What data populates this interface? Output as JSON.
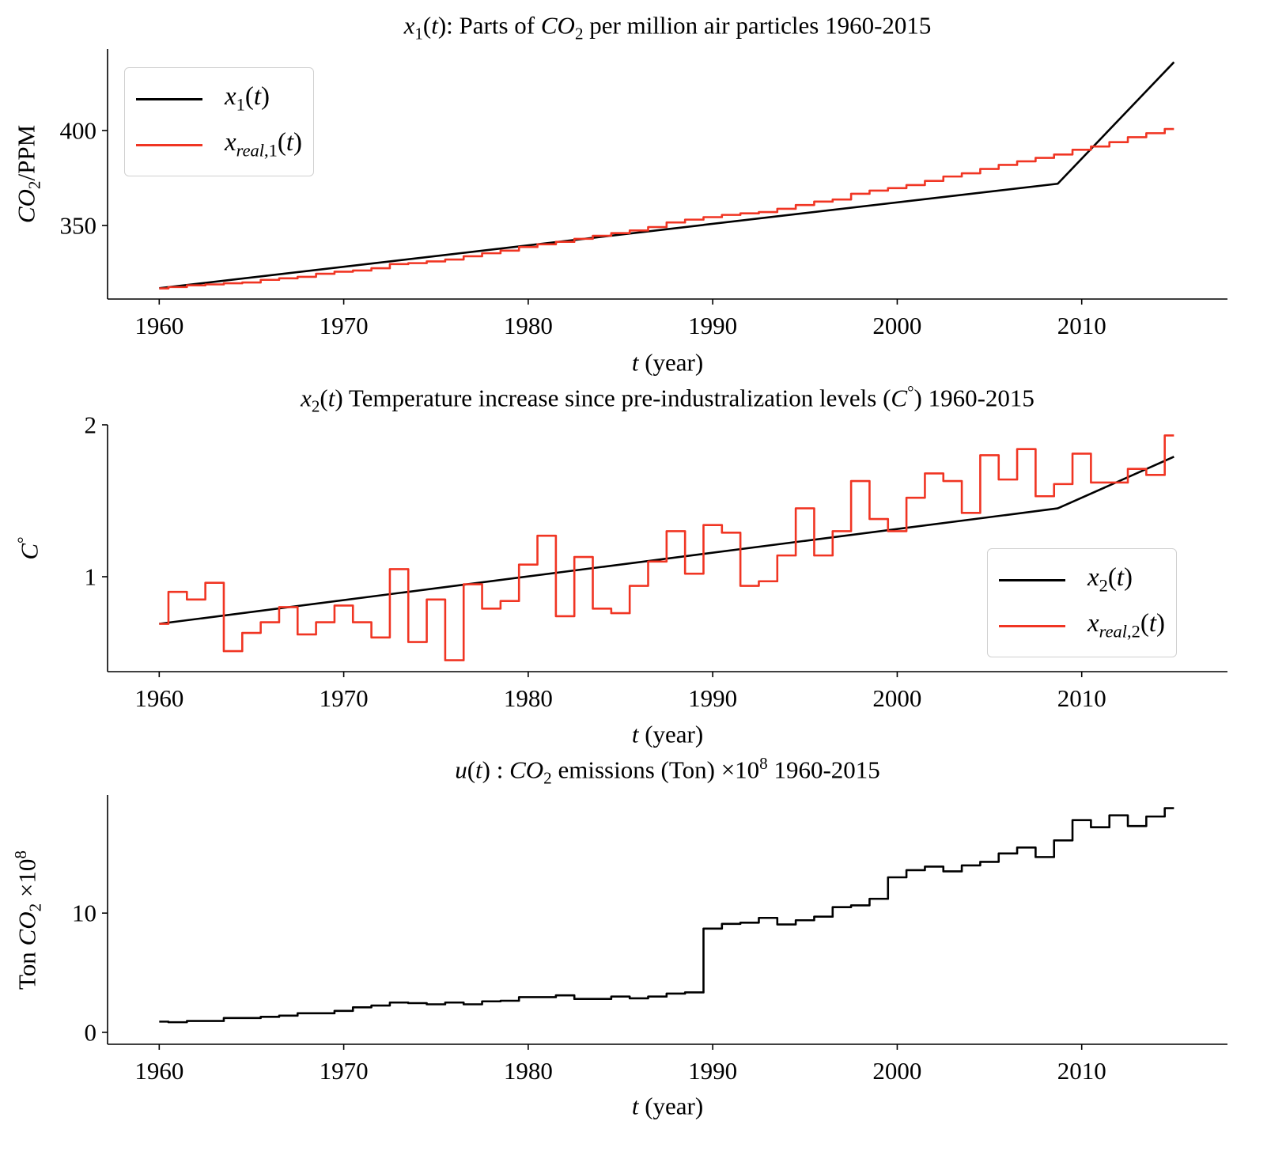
{
  "chart_data": [
    {
      "type": "line",
      "title": "$x_1(t)$: Parts of $CO_2$ per million air particles 1960-2015",
      "xlabel": "$t$ (year)",
      "ylabel": "$CO_2$/PPM",
      "xlim": [
        1957.2,
        2017.9
      ],
      "ylim": [
        311.3,
        442.9
      ],
      "x_ticks": [
        1960,
        1970,
        1980,
        1990,
        2000,
        2010
      ],
      "x_tick_labels": [
        "1960",
        "1970",
        "1980",
        "1990",
        "2000",
        "2010"
      ],
      "y_ticks": [
        350,
        400
      ],
      "y_tick_labels": [
        "350",
        "400"
      ],
      "grid": false,
      "legend": "upper-left",
      "series": [
        {
          "name": "$x_1(t)$",
          "color": "#000000",
          "style": "line",
          "x": [
            1960,
            2008.7,
            2015
          ],
          "values": [
            317.0,
            372.0,
            436.0
          ]
        },
        {
          "name": "$x_{real,1}(t)$",
          "color": "#f03523",
          "style": "step",
          "x": [
            1960,
            1961,
            1962,
            1963,
            1964,
            1965,
            1966,
            1967,
            1968,
            1969,
            1970,
            1971,
            1972,
            1973,
            1974,
            1975,
            1976,
            1977,
            1978,
            1979,
            1980,
            1981,
            1982,
            1983,
            1984,
            1985,
            1986,
            1987,
            1988,
            1989,
            1990,
            1991,
            1992,
            1993,
            1994,
            1995,
            1996,
            1997,
            1998,
            1999,
            2000,
            2001,
            2002,
            2003,
            2004,
            2005,
            2006,
            2007,
            2008,
            2009,
            2010,
            2011,
            2012,
            2013,
            2014,
            2015
          ],
          "values": [
            316.9,
            317.6,
            318.5,
            319.0,
            319.6,
            320.0,
            321.4,
            322.2,
            323.0,
            324.6,
            325.7,
            326.3,
            327.5,
            329.7,
            330.2,
            331.1,
            332.1,
            333.8,
            335.4,
            336.8,
            338.7,
            340.1,
            341.4,
            343.0,
            344.6,
            346.0,
            347.4,
            349.2,
            351.6,
            353.1,
            354.4,
            355.6,
            356.4,
            357.1,
            358.8,
            360.8,
            362.6,
            363.7,
            366.7,
            368.4,
            369.7,
            371.3,
            373.5,
            375.8,
            377.5,
            379.8,
            381.9,
            383.8,
            385.6,
            387.4,
            389.9,
            391.6,
            393.9,
            396.5,
            398.6,
            400.8
          ]
        }
      ]
    },
    {
      "type": "line",
      "title": "$x_2(t)$ Temperature increase since pre-industralization levels ($C^\\circ$) 1960-2015",
      "xlabel": "$t$ (year)",
      "ylabel": "$C^\\circ$",
      "xlim": [
        1957.2,
        2017.9
      ],
      "ylim": [
        0.375,
        2.0
      ],
      "x_ticks": [
        1960,
        1970,
        1980,
        1990,
        2000,
        2010
      ],
      "x_tick_labels": [
        "1960",
        "1970",
        "1980",
        "1990",
        "2000",
        "2010"
      ],
      "y_ticks": [
        1,
        2
      ],
      "y_tick_labels": [
        "1",
        "2"
      ],
      "grid": false,
      "legend": "lower-right",
      "series": [
        {
          "name": "$x_2(t)$",
          "color": "#000000",
          "style": "line",
          "x": [
            1960,
            2008.7,
            2015
          ],
          "values": [
            0.69,
            1.45,
            1.79
          ]
        },
        {
          "name": "$x_{real,2}(t)$",
          "color": "#f03523",
          "style": "step",
          "x": [
            1960,
            1961,
            1962,
            1963,
            1964,
            1965,
            1966,
            1967,
            1968,
            1969,
            1970,
            1971,
            1972,
            1973,
            1974,
            1975,
            1976,
            1977,
            1978,
            1979,
            1980,
            1981,
            1982,
            1983,
            1984,
            1985,
            1986,
            1987,
            1988,
            1989,
            1990,
            1991,
            1992,
            1993,
            1994,
            1995,
            1996,
            1997,
            1998,
            1999,
            2000,
            2001,
            2002,
            2003,
            2004,
            2005,
            2006,
            2007,
            2008,
            2009,
            2010,
            2011,
            2012,
            2013,
            2014,
            2015
          ],
          "values": [
            0.69,
            0.9,
            0.85,
            0.96,
            0.51,
            0.63,
            0.7,
            0.8,
            0.62,
            0.7,
            0.81,
            0.7,
            0.6,
            1.05,
            0.57,
            0.85,
            0.45,
            0.95,
            0.79,
            0.84,
            1.08,
            1.27,
            0.74,
            1.13,
            0.79,
            0.76,
            0.94,
            1.1,
            1.3,
            1.02,
            1.34,
            1.29,
            0.94,
            0.97,
            1.14,
            1.45,
            1.14,
            1.3,
            1.63,
            1.38,
            1.3,
            1.52,
            1.68,
            1.63,
            1.42,
            1.8,
            1.64,
            1.84,
            1.53,
            1.61,
            1.81,
            1.62,
            1.62,
            1.71,
            1.67,
            1.93
          ]
        }
      ]
    },
    {
      "type": "line",
      "title": "$u(t)$ : $CO_2$ emissions (Ton) $\\times 10^8$ 1960-2015",
      "xlabel": "$t$ (year)",
      "ylabel": "Ton $CO_2$ $\\times 10^8$",
      "xlim": [
        1957.2,
        2017.9
      ],
      "ylim": [
        -1.0,
        19.9
      ],
      "x_ticks": [
        1960,
        1970,
        1980,
        1990,
        2000,
        2010
      ],
      "x_tick_labels": [
        "1960",
        "1970",
        "1980",
        "1990",
        "2000",
        "2010"
      ],
      "y_ticks": [
        0,
        10
      ],
      "y_tick_labels": [
        "0",
        "10"
      ],
      "grid": false,
      "legend": "none",
      "series": [
        {
          "color": "#000000",
          "style": "step",
          "x": [
            1960,
            1961,
            1962,
            1963,
            1964,
            1965,
            1966,
            1967,
            1968,
            1969,
            1970,
            1971,
            1972,
            1973,
            1974,
            1975,
            1976,
            1977,
            1978,
            1979,
            1980,
            1981,
            1982,
            1983,
            1984,
            1985,
            1986,
            1987,
            1988,
            1989,
            1990,
            1991,
            1992,
            1993,
            1994,
            1995,
            1996,
            1997,
            1998,
            1999,
            2000,
            2001,
            2002,
            2003,
            2004,
            2005,
            2006,
            2007,
            2008,
            2009,
            2010,
            2011,
            2012,
            2013,
            2014,
            2015
          ],
          "values": [
            0.9,
            0.85,
            0.95,
            0.95,
            1.2,
            1.2,
            1.3,
            1.4,
            1.6,
            1.6,
            1.8,
            2.1,
            2.25,
            2.5,
            2.45,
            2.35,
            2.5,
            2.35,
            2.6,
            2.65,
            2.95,
            2.95,
            3.1,
            2.8,
            2.8,
            3.0,
            2.85,
            3.0,
            3.25,
            3.35,
            8.7,
            9.1,
            9.2,
            9.6,
            9.05,
            9.4,
            9.7,
            10.5,
            10.65,
            11.2,
            13.0,
            13.6,
            13.9,
            13.5,
            14.0,
            14.3,
            15.0,
            15.5,
            14.7,
            16.1,
            17.8,
            17.2,
            18.2,
            17.3,
            18.1,
            18.8
          ]
        }
      ]
    }
  ]
}
